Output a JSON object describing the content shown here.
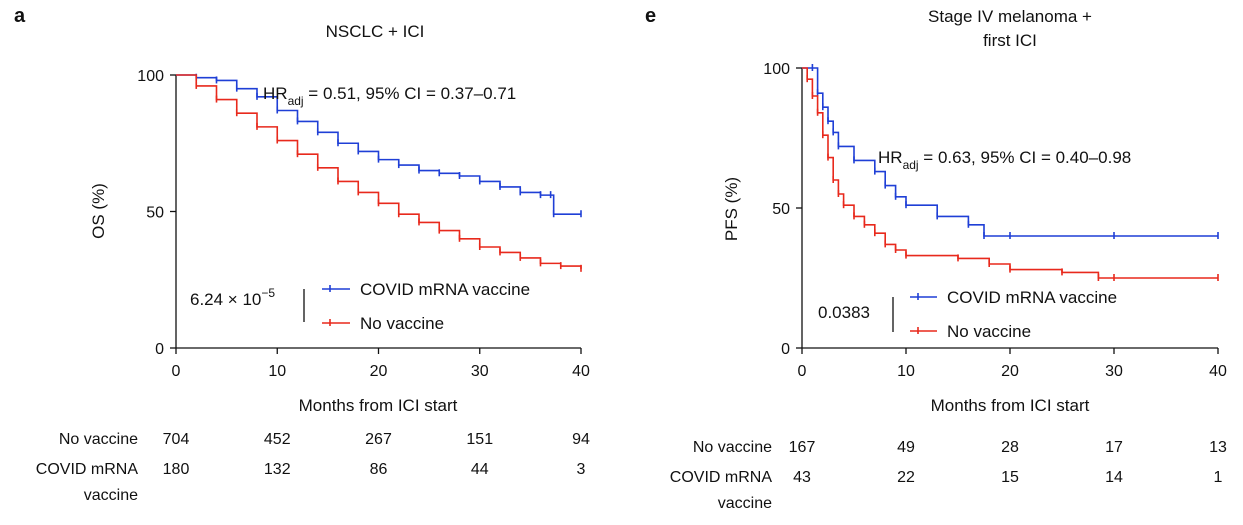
{
  "colors": {
    "vaccine": "#1f3fd6",
    "no_vaccine": "#e8291c",
    "axis": "#111111"
  },
  "chart_data": [
    {
      "type": "line",
      "panel_label": "a",
      "title": "NSCLC + ICI",
      "title_line2": "",
      "xlabel": "Months from ICI start",
      "ylabel": "OS (%)",
      "xlim": [
        0,
        40
      ],
      "ylim": [
        0,
        100
      ],
      "xticks": [
        0,
        10,
        20,
        30,
        40
      ],
      "yticks": [
        0,
        50,
        100
      ],
      "hr": {
        "prefix": "HR",
        "sub": "adj",
        "rest": " = 0.51, 95% CI = 0.37–0.71"
      },
      "pvalue": {
        "base": "6.24 × 10",
        "exp": "−5"
      },
      "legend": [
        {
          "key": "vaccine",
          "label": "COVID mRNA vaccine"
        },
        {
          "key": "no_vaccine",
          "label": "No vaccine"
        }
      ],
      "series": [
        {
          "name": "COVID mRNA vaccine",
          "key": "vaccine",
          "x": [
            0,
            2,
            4,
            6,
            8,
            10,
            12,
            14,
            16,
            18,
            20,
            22,
            24,
            26,
            28,
            30,
            32,
            34,
            36,
            37,
            37.3,
            40
          ],
          "y": [
            100,
            99,
            98,
            95,
            92,
            87,
            83,
            79,
            75,
            72,
            69,
            67,
            65,
            64,
            63,
            61,
            59,
            57,
            56,
            56,
            49,
            49
          ]
        },
        {
          "name": "No vaccine",
          "key": "no_vaccine",
          "x": [
            0,
            2,
            4,
            6,
            8,
            10,
            12,
            14,
            16,
            18,
            20,
            22,
            24,
            26,
            28,
            30,
            32,
            34,
            36,
            38,
            40
          ],
          "y": [
            100,
            96,
            91,
            86,
            81,
            76,
            71,
            66,
            61,
            57,
            53,
            49,
            46,
            43,
            40,
            37,
            35,
            33,
            31,
            30,
            29
          ]
        }
      ],
      "risk_table": {
        "rows": [
          {
            "label": "No vaccine",
            "label2": "",
            "values": [
              "704",
              "452",
              "267",
              "151",
              "94"
            ]
          },
          {
            "label": "COVID mRNA",
            "label2": "vaccine",
            "values": [
              "180",
              "132",
              "86",
              "44",
              "3"
            ]
          }
        ]
      }
    },
    {
      "type": "line",
      "panel_label": "e",
      "title": "Stage IV melanoma +",
      "title_line2": "first ICI",
      "xlabel": "Months from ICI start",
      "ylabel": "PFS (%)",
      "xlim": [
        0,
        40
      ],
      "ylim": [
        0,
        100
      ],
      "xticks": [
        0,
        10,
        20,
        30,
        40
      ],
      "yticks": [
        0,
        50,
        100
      ],
      "hr": {
        "prefix": "HR",
        "sub": "adj",
        "rest": " = 0.63, 95% CI = 0.40–0.98"
      },
      "pvalue": {
        "base": "0.0383",
        "exp": ""
      },
      "legend": [
        {
          "key": "vaccine",
          "label": "COVID mRNA vaccine"
        },
        {
          "key": "no_vaccine",
          "label": "No vaccine"
        }
      ],
      "series": [
        {
          "name": "COVID mRNA vaccine",
          "key": "vaccine",
          "x": [
            0,
            1,
            1.5,
            2,
            2.5,
            3,
            3.5,
            5,
            7,
            8,
            9,
            10,
            13,
            16,
            17.5,
            20,
            30,
            40
          ],
          "y": [
            100,
            100,
            91,
            86,
            81,
            77,
            72,
            67,
            63,
            58,
            54,
            51,
            47,
            44,
            40,
            40,
            40,
            40
          ]
        },
        {
          "name": "No vaccine",
          "key": "no_vaccine",
          "x": [
            0,
            0.5,
            1,
            1.5,
            2,
            2.5,
            3,
            3.5,
            4,
            5,
            6,
            7,
            8,
            9,
            10,
            15,
            18,
            20,
            25,
            28.5,
            30,
            40
          ],
          "y": [
            100,
            96,
            90,
            84,
            76,
            68,
            60,
            55,
            51,
            47,
            44,
            41,
            37,
            35,
            33,
            32,
            30,
            28,
            27,
            25,
            25,
            25
          ]
        }
      ],
      "risk_table": {
        "rows": [
          {
            "label": "No vaccine",
            "label2": "",
            "values": [
              "167",
              "49",
              "28",
              "17",
              "13"
            ]
          },
          {
            "label": "COVID mRNA",
            "label2": "vaccine",
            "values": [
              "43",
              "22",
              "15",
              "14",
              "1"
            ]
          }
        ]
      }
    }
  ]
}
